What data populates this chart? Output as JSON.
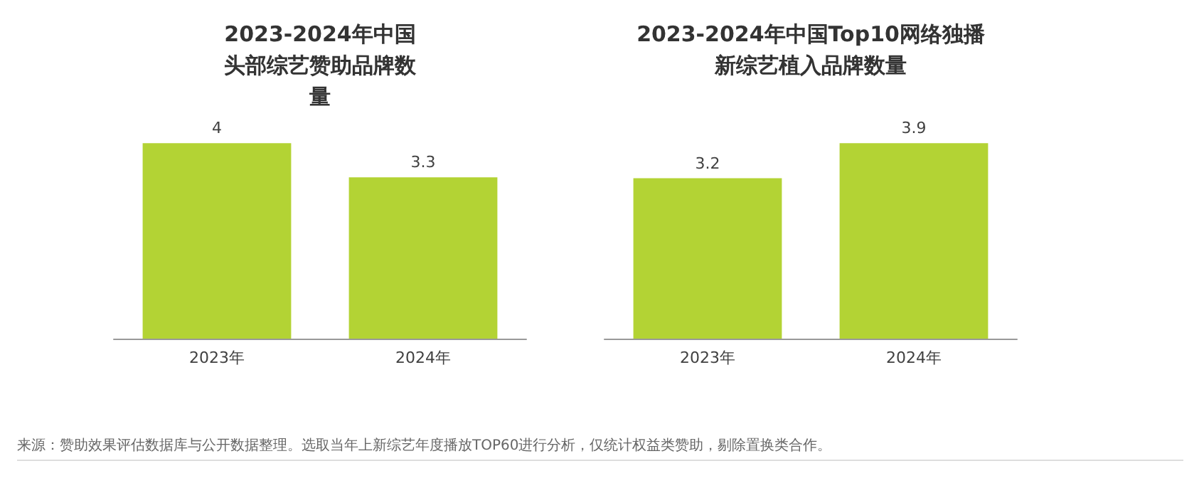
{
  "chart_data": [
    {
      "type": "bar",
      "title": "2023-2024年中国头部综艺赞助品牌数量",
      "categories": [
        "2023年",
        "2024年"
      ],
      "values": [
        4,
        3.3
      ],
      "color": "#b3d334",
      "data_labels": true,
      "annotations": [
        "来源：赞助效果评估数据库与公开数据整理。选取当年上新综艺年度播放TOP60进行分析，仅统计权益类赞助，剔除置换类合作。"
      ]
    },
    {
      "type": "bar",
      "title": "2023-2024年中国Top10网络独播新综艺植入品牌数量",
      "categories": [
        "2023年",
        "2024年"
      ],
      "values": [
        3.2,
        3.9
      ],
      "color": "#b3d334",
      "data_labels": true
    }
  ]
}
